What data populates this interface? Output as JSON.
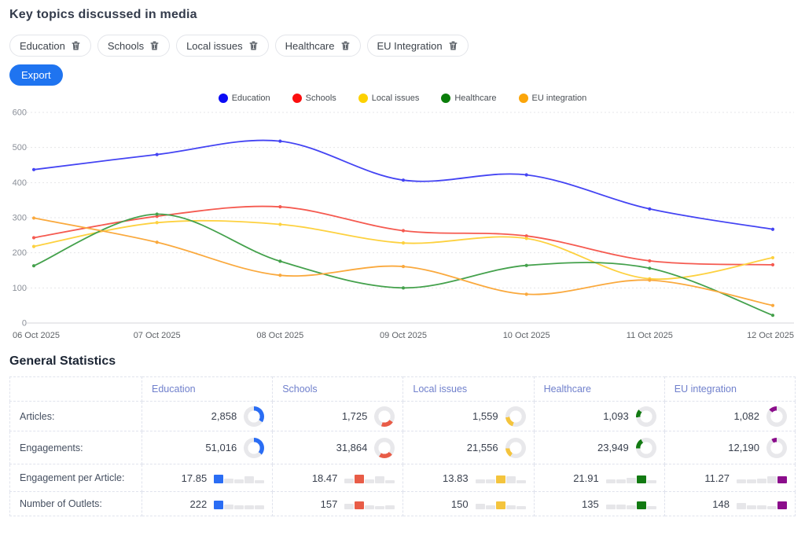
{
  "page": {
    "title": "Key topics discussed in media"
  },
  "filters": {
    "chips": [
      {
        "label": "Education"
      },
      {
        "label": "Schools"
      },
      {
        "label": "Local issues"
      },
      {
        "label": "Healthcare"
      },
      {
        "label": "EU Integration"
      }
    ],
    "export_label": "Export"
  },
  "chart_data": {
    "type": "line",
    "x": [
      "06 Oct 2025",
      "07 Oct 2025",
      "08 Oct 2025",
      "09 Oct 2025",
      "10 Oct 2025",
      "11 Oct 2025",
      "12 Oct 2025"
    ],
    "ylim": [
      0,
      600
    ],
    "yticks": [
      0,
      100,
      200,
      300,
      400,
      500,
      600
    ],
    "grid": true,
    "legend_position": "top",
    "series": [
      {
        "name": "Education",
        "color": "#4444f3",
        "legend_color": "#0b0bf5",
        "values": [
          437,
          480,
          518,
          407,
          422,
          325,
          267
        ]
      },
      {
        "name": "Schools",
        "color": "#f55a50",
        "legend_color": "#fb0e0e",
        "values": [
          243,
          304,
          331,
          263,
          248,
          177,
          166
        ]
      },
      {
        "name": "Local issues",
        "color": "#fdd13f",
        "legend_color": "#fdd100",
        "values": [
          218,
          286,
          281,
          228,
          241,
          126,
          186
        ]
      },
      {
        "name": "Healthcare",
        "color": "#44a14c",
        "legend_color": "#0a7d0a",
        "values": [
          163,
          310,
          176,
          100,
          164,
          156,
          22
        ]
      },
      {
        "name": "EU integration",
        "color": "#faa93d",
        "legend_color": "#fba50a",
        "values": [
          299,
          230,
          136,
          161,
          82,
          122,
          50
        ]
      }
    ]
  },
  "stats": {
    "title": "General Statistics",
    "rows": {
      "articles": "Articles:",
      "engagements": "Engagements:",
      "epa": "Engagement per Article:",
      "outlets": "Number of Outlets:"
    },
    "columns": [
      {
        "name": "Education",
        "color": "#2a6df4",
        "articles": "2,858",
        "articles_arc": [
          0,
          34.4
        ],
        "engagements": "51,016",
        "engagements_arc": [
          0,
          36.3
        ],
        "epa": "17.85",
        "epa_bars": [
          11,
          6,
          5,
          9,
          4
        ],
        "outlets": "222",
        "outlets_bars": [
          11,
          6,
          5,
          5,
          5
        ]
      },
      {
        "name": "Schools",
        "color": "#e85c47",
        "articles": "1,725",
        "articles_arc": [
          34.4,
          55.1
        ],
        "engagements": "31,864",
        "engagements_arc": [
          36.3,
          59.0
        ],
        "epa": "18.47",
        "epa_bars": [
          6,
          11,
          5,
          9,
          4
        ],
        "outlets": "157",
        "outlets_bars": [
          7,
          10,
          5,
          4,
          5
        ]
      },
      {
        "name": "Local issues",
        "color": "#f4c43d",
        "articles": "1,559",
        "articles_arc": [
          55.1,
          73.8
        ],
        "engagements": "21,556",
        "engagements_arc": [
          59.0,
          74.3
        ],
        "epa": "13.83",
        "epa_bars": [
          5,
          5,
          10,
          9,
          4
        ],
        "outlets": "150",
        "outlets_bars": [
          7,
          5,
          10,
          5,
          4
        ]
      },
      {
        "name": "Healthcare",
        "color": "#127a12",
        "articles": "1,093",
        "articles_arc": [
          73.8,
          86.9
        ],
        "engagements": "23,949",
        "engagements_arc": [
          74.3,
          91.3
        ],
        "epa": "21.91",
        "epa_bars": [
          5,
          5,
          7,
          10,
          4
        ],
        "outlets": "135",
        "outlets_bars": [
          6,
          6,
          5,
          10,
          4
        ]
      },
      {
        "name": "EU integration",
        "color": "#8b0d8b",
        "articles": "1,082",
        "articles_arc": [
          86.9,
          100
        ],
        "engagements": "12,190",
        "engagements_arc": [
          91.3,
          100
        ],
        "epa": "11.27",
        "epa_bars": [
          5,
          5,
          6,
          9,
          9
        ],
        "outlets": "148",
        "outlets_bars": [
          8,
          5,
          5,
          4,
          10
        ]
      }
    ]
  }
}
